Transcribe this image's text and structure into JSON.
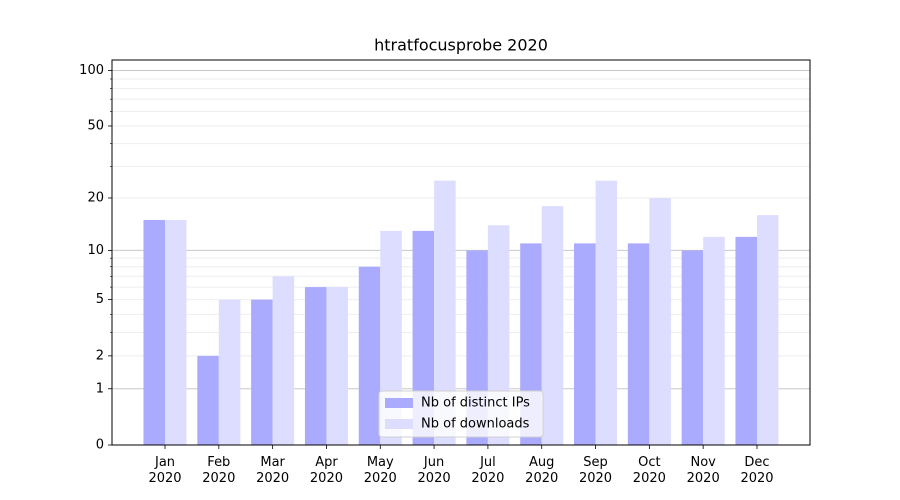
{
  "chart_data": {
    "type": "bar",
    "title": "htratfocusprobe 2020",
    "categories": [
      "Jan\n2020",
      "Feb\n2020",
      "Mar\n2020",
      "Apr\n2020",
      "May\n2020",
      "Jun\n2020",
      "Jul\n2020",
      "Aug\n2020",
      "Sep\n2020",
      "Oct\n2020",
      "Nov\n2020",
      "Dec\n2020"
    ],
    "series": [
      {
        "name": "Nb of distinct IPs",
        "color": "#aaaaff",
        "values": [
          15,
          2,
          5,
          6,
          8,
          13,
          10,
          11,
          11,
          11,
          10,
          12
        ]
      },
      {
        "name": "Nb of downloads",
        "color": "#ddddff",
        "values": [
          15,
          5,
          7,
          6,
          13,
          25,
          14,
          18,
          25,
          20,
          12,
          16
        ]
      }
    ],
    "yscale": "log1p",
    "ylim": [
      0,
      114
    ],
    "yticks": [
      0,
      1,
      2,
      5,
      10,
      20,
      50,
      100
    ],
    "yminor": [
      3,
      4,
      6,
      7,
      8,
      9,
      30,
      40,
      60,
      70,
      80,
      90
    ],
    "grid": true,
    "legend": "lower center"
  }
}
